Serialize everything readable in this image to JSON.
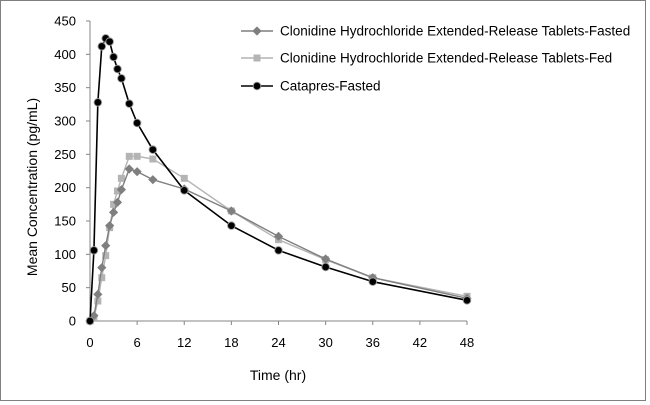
{
  "chart_data": {
    "type": "line",
    "title": "",
    "xlabel": "Time (hr)",
    "ylabel": "Mean Concentration (pg/mL)",
    "xlim": [
      0,
      48
    ],
    "ylim": [
      0,
      450
    ],
    "xticks": [
      0,
      6,
      12,
      18,
      24,
      30,
      36,
      42,
      48
    ],
    "yticks": [
      0,
      50,
      100,
      150,
      200,
      250,
      300,
      350,
      400,
      450
    ],
    "grid": false,
    "legend_position": "top-right",
    "series": [
      {
        "name": "Clonidine Hydrochloride Extended-Release Tablets-Fasted",
        "color": "#7f7f7f",
        "marker": "diamond",
        "x": [
          0,
          0.5,
          1,
          1.5,
          2,
          2.5,
          3,
          3.5,
          4,
          5,
          6,
          8,
          12,
          18,
          24,
          30,
          36,
          48
        ],
        "y": [
          0,
          8,
          40,
          80,
          113,
          143,
          163,
          178,
          197,
          228,
          224,
          212,
          198,
          165,
          127,
          93,
          65,
          34
        ]
      },
      {
        "name": "Clonidine Hydrochloride Extended-Release Tablets-Fed",
        "color": "#b4b4b4",
        "marker": "square",
        "x": [
          0,
          0.5,
          1,
          1.5,
          2,
          2.5,
          3,
          3.5,
          4,
          5,
          6,
          8,
          12,
          18,
          24,
          30,
          36,
          48
        ],
        "y": [
          0,
          5,
          30,
          65,
          98,
          140,
          175,
          195,
          214,
          247,
          247,
          243,
          214,
          165,
          122,
          92,
          65,
          37
        ]
      },
      {
        "name": "Catapres-Fasted",
        "color": "#000000",
        "marker": "circle",
        "x": [
          0,
          0.5,
          1,
          1.5,
          2,
          2.5,
          3,
          3.5,
          4,
          5,
          6,
          8,
          12,
          18,
          24,
          30,
          36,
          48
        ],
        "y": [
          0,
          106,
          328,
          412,
          424,
          419,
          396,
          378,
          364,
          326,
          297,
          257,
          196,
          143,
          106,
          81,
          59,
          31
        ]
      }
    ]
  }
}
